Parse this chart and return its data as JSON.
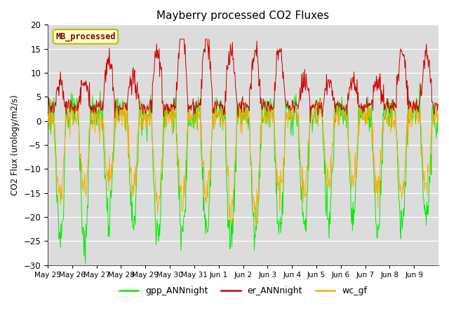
{
  "title": "Mayberry processed CO2 Fluxes",
  "ylabel": "CO2 Flux (urology/m2/s)",
  "ylim": [
    -30,
    20
  ],
  "yticks": [
    -30,
    -25,
    -20,
    -15,
    -10,
    -5,
    0,
    5,
    10,
    15,
    20
  ],
  "bg_color": "#dcdcdc",
  "fig_bg": "#ffffff",
  "line_gpp_color": "#00ee00",
  "line_er_color": "#cc0000",
  "line_wc_color": "#ffaa00",
  "legend_label": "MB_processed",
  "legend_text_color": "#880000",
  "legend_box_color": "#ffffcc",
  "legend_edge_color": "#bbbb00",
  "series_labels": [
    "gpp_ANNnight",
    "er_ANNnight",
    "wc_gf"
  ],
  "n_days": 16,
  "pts_per_day": 48,
  "xtick_labels": [
    "May 25",
    "May 26",
    "May 27",
    "May 28",
    "May 29",
    "May 30",
    "May 31",
    "Jun 1",
    "Jun 2",
    "Jun 3",
    "Jun 4",
    "Jun 5",
    "Jun 6",
    "Jun 7",
    "Jun 8",
    "Jun 9"
  ]
}
